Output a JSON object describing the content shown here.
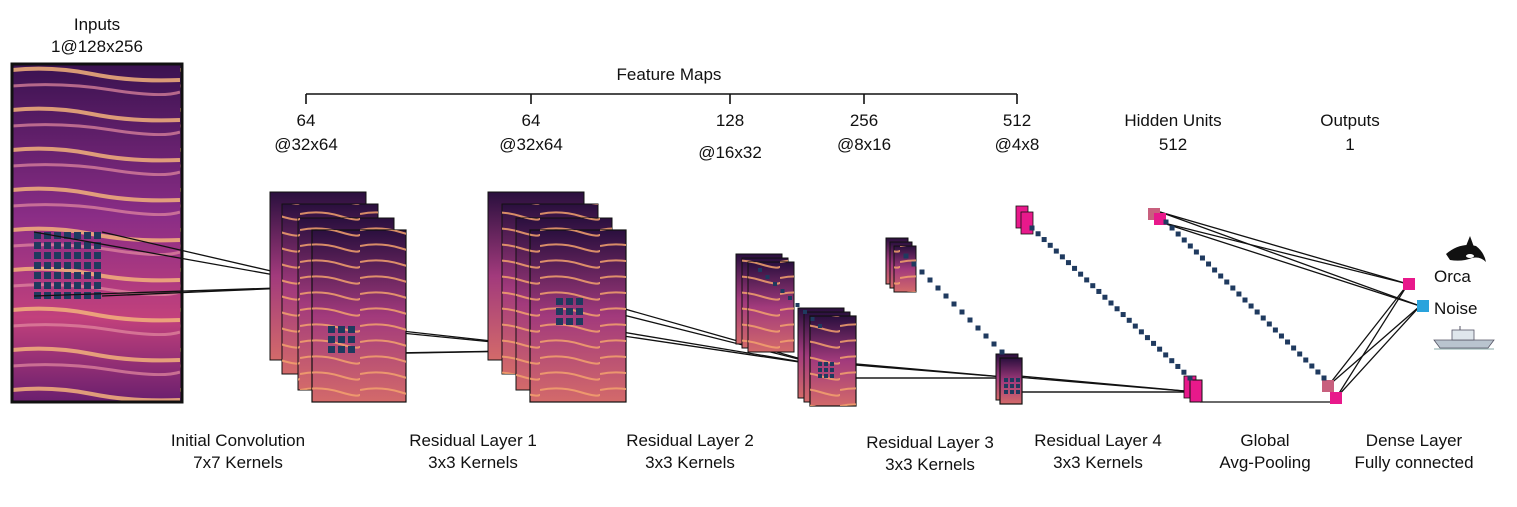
{
  "labels": {
    "inputs_title": "Inputs",
    "inputs_dim": "1@128x256",
    "feature_maps_title": "Feature Maps",
    "fm1_count": "64",
    "fm1_dim": "@32x64",
    "fm2_count": "64",
    "fm2_dim": "@32x64",
    "fm3_count": "128",
    "fm3_dim": "@16x32",
    "fm4_count": "256",
    "fm4_dim": "@8x16",
    "fm5_count": "512",
    "fm5_dim": "@4x8",
    "hidden_title": "Hidden Units",
    "hidden_count": "512",
    "outputs_title": "Outputs",
    "outputs_count": "1",
    "layer_initial_conv": "Initial Convolution",
    "layer_initial_kernel": "7x7 Kernels",
    "layer_res1": "Residual Layer 1",
    "layer_res1_kernel": "3x3 Kernels",
    "layer_res2": "Residual Layer 2",
    "layer_res2_kernel": "3x3 Kernels",
    "layer_res3": "Residual Layer 3",
    "layer_res3_kernel": "3x3 Kernels",
    "layer_res4": "Residual Layer 4",
    "layer_res4_kernel": "3x3 Kernels",
    "layer_pool": "Global",
    "layer_pool_sub": "Avg-Pooling",
    "layer_dense": "Dense Layer",
    "layer_dense_sub": "Fully connected",
    "class_orca": "Orca",
    "class_noise": "Noise"
  },
  "icons": {
    "orca": "orca-icon",
    "boat": "boat-icon"
  },
  "colors": {
    "spectrogram_dark": "#1e0b33",
    "spectrogram_mid": "#8a2d86",
    "spectrogram_bright": "#f0a070",
    "kernel_dots": "#1f3a5f",
    "unit_magenta": "#e8198b",
    "unit_rose": "#c8607e",
    "noise_blue": "#29a3dc"
  }
}
